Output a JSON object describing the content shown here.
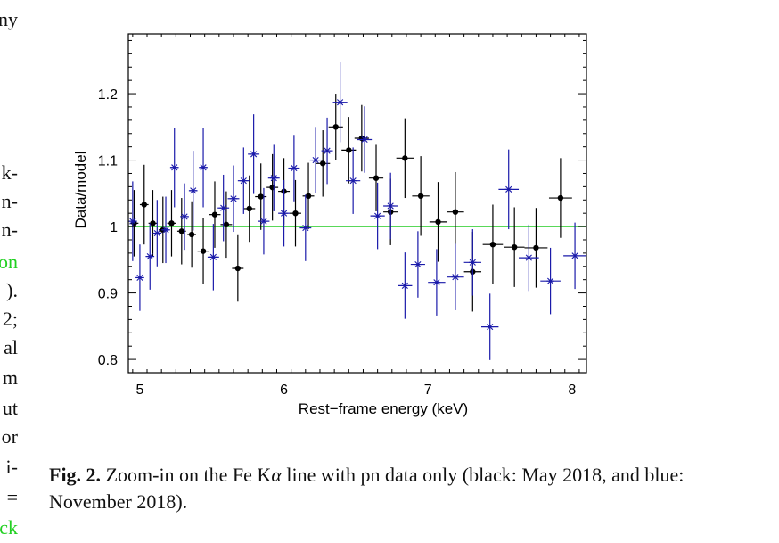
{
  "left_column_fragments": [
    {
      "text": "ny",
      "green": false
    },
    {
      "text": "k-",
      "green": false
    },
    {
      "text": "n-",
      "green": false
    },
    {
      "text": "n-",
      "green": false
    },
    {
      "text": "on",
      "green": true
    },
    {
      "text": ").",
      "green": false
    },
    {
      "text": "2;",
      "green": false
    },
    {
      "text": "al",
      "green": false
    },
    {
      "text": "m",
      "green": false
    },
    {
      "text": "ut",
      "green": false
    },
    {
      "text": "or",
      "green": false
    },
    {
      "text": "i-",
      "green": false
    },
    {
      "text": "=",
      "green": false
    },
    {
      "text": "ck",
      "green": true
    }
  ],
  "caption": {
    "label": "Fig. 2.",
    "text_before_symbol": " Zoom-in on the Fe K",
    "symbol": "α",
    "text_after_symbol": " line with pn data only (black: May 2018, and blue: November 2018)."
  },
  "chart_data": {
    "type": "scatter",
    "xlabel": "Rest−frame energy (keV)",
    "ylabel": "Data/model",
    "xlim": [
      4.92,
      8.1
    ],
    "ylim": [
      0.78,
      1.29
    ],
    "x_ticks": [
      5,
      6,
      7,
      8
    ],
    "y_ticks": [
      0.8,
      0.9,
      1,
      1.1,
      1.2
    ],
    "y_tick_labels": [
      "0.8",
      "0.9",
      "1",
      "1.1",
      "1.2"
    ],
    "x_tick_labels": [
      "5",
      "6",
      "7",
      "8"
    ],
    "reference_line": {
      "y": 1.0,
      "color": "#22cc22"
    },
    "colors": {
      "may_2018": "#000000",
      "nov_2018": "#1a1aaa"
    },
    "series": [
      {
        "marker": "dot",
        "color": "#000000",
        "points": [
          {
            "x": 4.96,
            "y": 1.005,
            "xerr": 0.03,
            "yerr": 0.05
          },
          {
            "x": 5.03,
            "y": 1.033,
            "xerr": 0.03,
            "yerr": 0.06
          },
          {
            "x": 5.09,
            "y": 1.005,
            "xerr": 0.03,
            "yerr": 0.05
          },
          {
            "x": 5.16,
            "y": 0.995,
            "xerr": 0.03,
            "yerr": 0.05
          },
          {
            "x": 5.22,
            "y": 1.005,
            "xerr": 0.03,
            "yerr": 0.05
          },
          {
            "x": 5.29,
            "y": 0.993,
            "xerr": 0.03,
            "yerr": 0.05
          },
          {
            "x": 5.36,
            "y": 0.988,
            "xerr": 0.03,
            "yerr": 0.05
          },
          {
            "x": 5.44,
            "y": 0.963,
            "xerr": 0.04,
            "yerr": 0.05
          },
          {
            "x": 5.52,
            "y": 1.018,
            "xerr": 0.04,
            "yerr": 0.05
          },
          {
            "x": 5.6,
            "y": 1.003,
            "xerr": 0.04,
            "yerr": 0.05
          },
          {
            "x": 5.68,
            "y": 0.937,
            "xerr": 0.04,
            "yerr": 0.05
          },
          {
            "x": 5.76,
            "y": 1.027,
            "xerr": 0.04,
            "yerr": 0.05
          },
          {
            "x": 5.84,
            "y": 1.045,
            "xerr": 0.04,
            "yerr": 0.05
          },
          {
            "x": 5.92,
            "y": 1.059,
            "xerr": 0.04,
            "yerr": 0.05
          },
          {
            "x": 6.0,
            "y": 1.053,
            "xerr": 0.04,
            "yerr": 0.05
          },
          {
            "x": 6.08,
            "y": 1.02,
            "xerr": 0.04,
            "yerr": 0.05
          },
          {
            "x": 6.17,
            "y": 1.046,
            "xerr": 0.04,
            "yerr": 0.05
          },
          {
            "x": 6.27,
            "y": 1.095,
            "xerr": 0.05,
            "yerr": 0.05
          },
          {
            "x": 6.36,
            "y": 1.15,
            "xerr": 0.05,
            "yerr": 0.05
          },
          {
            "x": 6.45,
            "y": 1.115,
            "xerr": 0.05,
            "yerr": 0.05
          },
          {
            "x": 6.54,
            "y": 1.133,
            "xerr": 0.05,
            "yerr": 0.05
          },
          {
            "x": 6.64,
            "y": 1.073,
            "xerr": 0.05,
            "yerr": 0.05
          },
          {
            "x": 6.74,
            "y": 1.022,
            "xerr": 0.05,
            "yerr": 0.05
          },
          {
            "x": 6.84,
            "y": 1.103,
            "xerr": 0.06,
            "yerr": 0.06
          },
          {
            "x": 6.95,
            "y": 1.046,
            "xerr": 0.06,
            "yerr": 0.06
          },
          {
            "x": 7.07,
            "y": 1.007,
            "xerr": 0.06,
            "yerr": 0.06
          },
          {
            "x": 7.19,
            "y": 1.022,
            "xerr": 0.06,
            "yerr": 0.06
          },
          {
            "x": 7.31,
            "y": 0.932,
            "xerr": 0.06,
            "yerr": 0.06
          },
          {
            "x": 7.45,
            "y": 0.973,
            "xerr": 0.07,
            "yerr": 0.06
          },
          {
            "x": 7.6,
            "y": 0.969,
            "xerr": 0.07,
            "yerr": 0.06
          },
          {
            "x": 7.75,
            "y": 0.968,
            "xerr": 0.08,
            "yerr": 0.06
          },
          {
            "x": 7.92,
            "y": 1.043,
            "xerr": 0.08,
            "yerr": 0.06
          }
        ]
      },
      {
        "marker": "cross",
        "color": "#1a1aaa",
        "points": [
          {
            "x": 4.95,
            "y": 1.008,
            "xerr": 0.03,
            "yerr": 0.06
          },
          {
            "x": 5.0,
            "y": 0.923,
            "xerr": 0.03,
            "yerr": 0.05
          },
          {
            "x": 5.07,
            "y": 0.955,
            "xerr": 0.03,
            "yerr": 0.05
          },
          {
            "x": 5.12,
            "y": 0.99,
            "xerr": 0.03,
            "yerr": 0.05
          },
          {
            "x": 5.18,
            "y": 0.995,
            "xerr": 0.03,
            "yerr": 0.05
          },
          {
            "x": 5.24,
            "y": 1.089,
            "xerr": 0.03,
            "yerr": 0.06
          },
          {
            "x": 5.31,
            "y": 1.015,
            "xerr": 0.03,
            "yerr": 0.05
          },
          {
            "x": 5.37,
            "y": 1.054,
            "xerr": 0.03,
            "yerr": 0.06
          },
          {
            "x": 5.44,
            "y": 1.089,
            "xerr": 0.03,
            "yerr": 0.06
          },
          {
            "x": 5.51,
            "y": 0.954,
            "xerr": 0.04,
            "yerr": 0.05
          },
          {
            "x": 5.58,
            "y": 1.028,
            "xerr": 0.04,
            "yerr": 0.05
          },
          {
            "x": 5.65,
            "y": 1.042,
            "xerr": 0.04,
            "yerr": 0.05
          },
          {
            "x": 5.72,
            "y": 1.069,
            "xerr": 0.04,
            "yerr": 0.05
          },
          {
            "x": 5.79,
            "y": 1.109,
            "xerr": 0.04,
            "yerr": 0.06
          },
          {
            "x": 5.86,
            "y": 1.008,
            "xerr": 0.04,
            "yerr": 0.05
          },
          {
            "x": 5.93,
            "y": 1.073,
            "xerr": 0.04,
            "yerr": 0.05
          },
          {
            "x": 6.0,
            "y": 1.02,
            "xerr": 0.04,
            "yerr": 0.05
          },
          {
            "x": 6.07,
            "y": 1.088,
            "xerr": 0.04,
            "yerr": 0.05
          },
          {
            "x": 6.15,
            "y": 0.998,
            "xerr": 0.04,
            "yerr": 0.05
          },
          {
            "x": 6.22,
            "y": 1.1,
            "xerr": 0.04,
            "yerr": 0.05
          },
          {
            "x": 6.3,
            "y": 1.114,
            "xerr": 0.04,
            "yerr": 0.05
          },
          {
            "x": 6.39,
            "y": 1.187,
            "xerr": 0.05,
            "yerr": 0.06
          },
          {
            "x": 6.48,
            "y": 1.069,
            "xerr": 0.05,
            "yerr": 0.05
          },
          {
            "x": 6.56,
            "y": 1.131,
            "xerr": 0.05,
            "yerr": 0.05
          },
          {
            "x": 6.65,
            "y": 1.016,
            "xerr": 0.05,
            "yerr": 0.05
          },
          {
            "x": 6.74,
            "y": 1.031,
            "xerr": 0.05,
            "yerr": 0.05
          },
          {
            "x": 6.84,
            "y": 0.911,
            "xerr": 0.05,
            "yerr": 0.05
          },
          {
            "x": 6.93,
            "y": 0.943,
            "xerr": 0.05,
            "yerr": 0.05
          },
          {
            "x": 7.06,
            "y": 0.916,
            "xerr": 0.06,
            "yerr": 0.05
          },
          {
            "x": 7.19,
            "y": 0.924,
            "xerr": 0.06,
            "yerr": 0.05
          },
          {
            "x": 7.31,
            "y": 0.946,
            "xerr": 0.06,
            "yerr": 0.05
          },
          {
            "x": 7.43,
            "y": 0.849,
            "xerr": 0.06,
            "yerr": 0.05
          },
          {
            "x": 7.56,
            "y": 1.056,
            "xerr": 0.07,
            "yerr": 0.06
          },
          {
            "x": 7.7,
            "y": 0.953,
            "xerr": 0.07,
            "yerr": 0.05
          },
          {
            "x": 7.85,
            "y": 0.918,
            "xerr": 0.07,
            "yerr": 0.05
          },
          {
            "x": 8.02,
            "y": 0.956,
            "xerr": 0.08,
            "yerr": 0.05
          }
        ]
      }
    ]
  }
}
